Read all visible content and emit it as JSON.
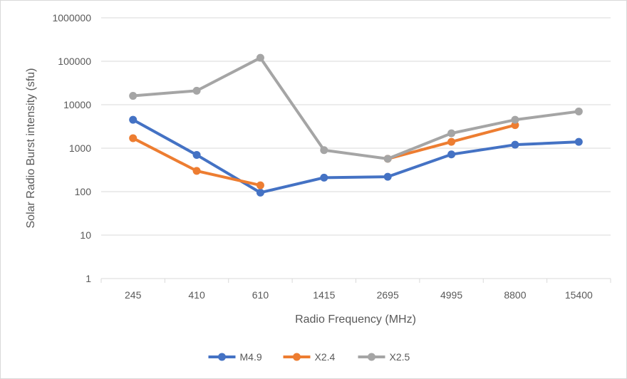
{
  "chart_data": {
    "type": "line",
    "title": "",
    "xlabel": "Radio Frequency (MHz)",
    "ylabel": "Solar Radio Burst intensity (sfu)",
    "yscale": "log",
    "ylim": [
      1,
      1000000
    ],
    "y_ticks": [
      "1",
      "10",
      "100",
      "1000",
      "10000",
      "100000",
      "1000000"
    ],
    "categories": [
      "245",
      "410",
      "610",
      "1415",
      "2695",
      "4995",
      "8800",
      "15400"
    ],
    "grid": true,
    "legend_position": "bottom",
    "series": [
      {
        "name": "M4.9",
        "color": "#4472c4",
        "values": [
          4500,
          700,
          95,
          210,
          220,
          720,
          1200,
          1400
        ]
      },
      {
        "name": "X2.4",
        "color": "#ed7d31",
        "values": [
          1700,
          300,
          140,
          null,
          570,
          1400,
          3400,
          null
        ]
      },
      {
        "name": "X2.5",
        "color": "#a5a5a5",
        "values": [
          16000,
          21000,
          120000,
          900,
          570,
          2200,
          4500,
          7000
        ]
      }
    ]
  }
}
